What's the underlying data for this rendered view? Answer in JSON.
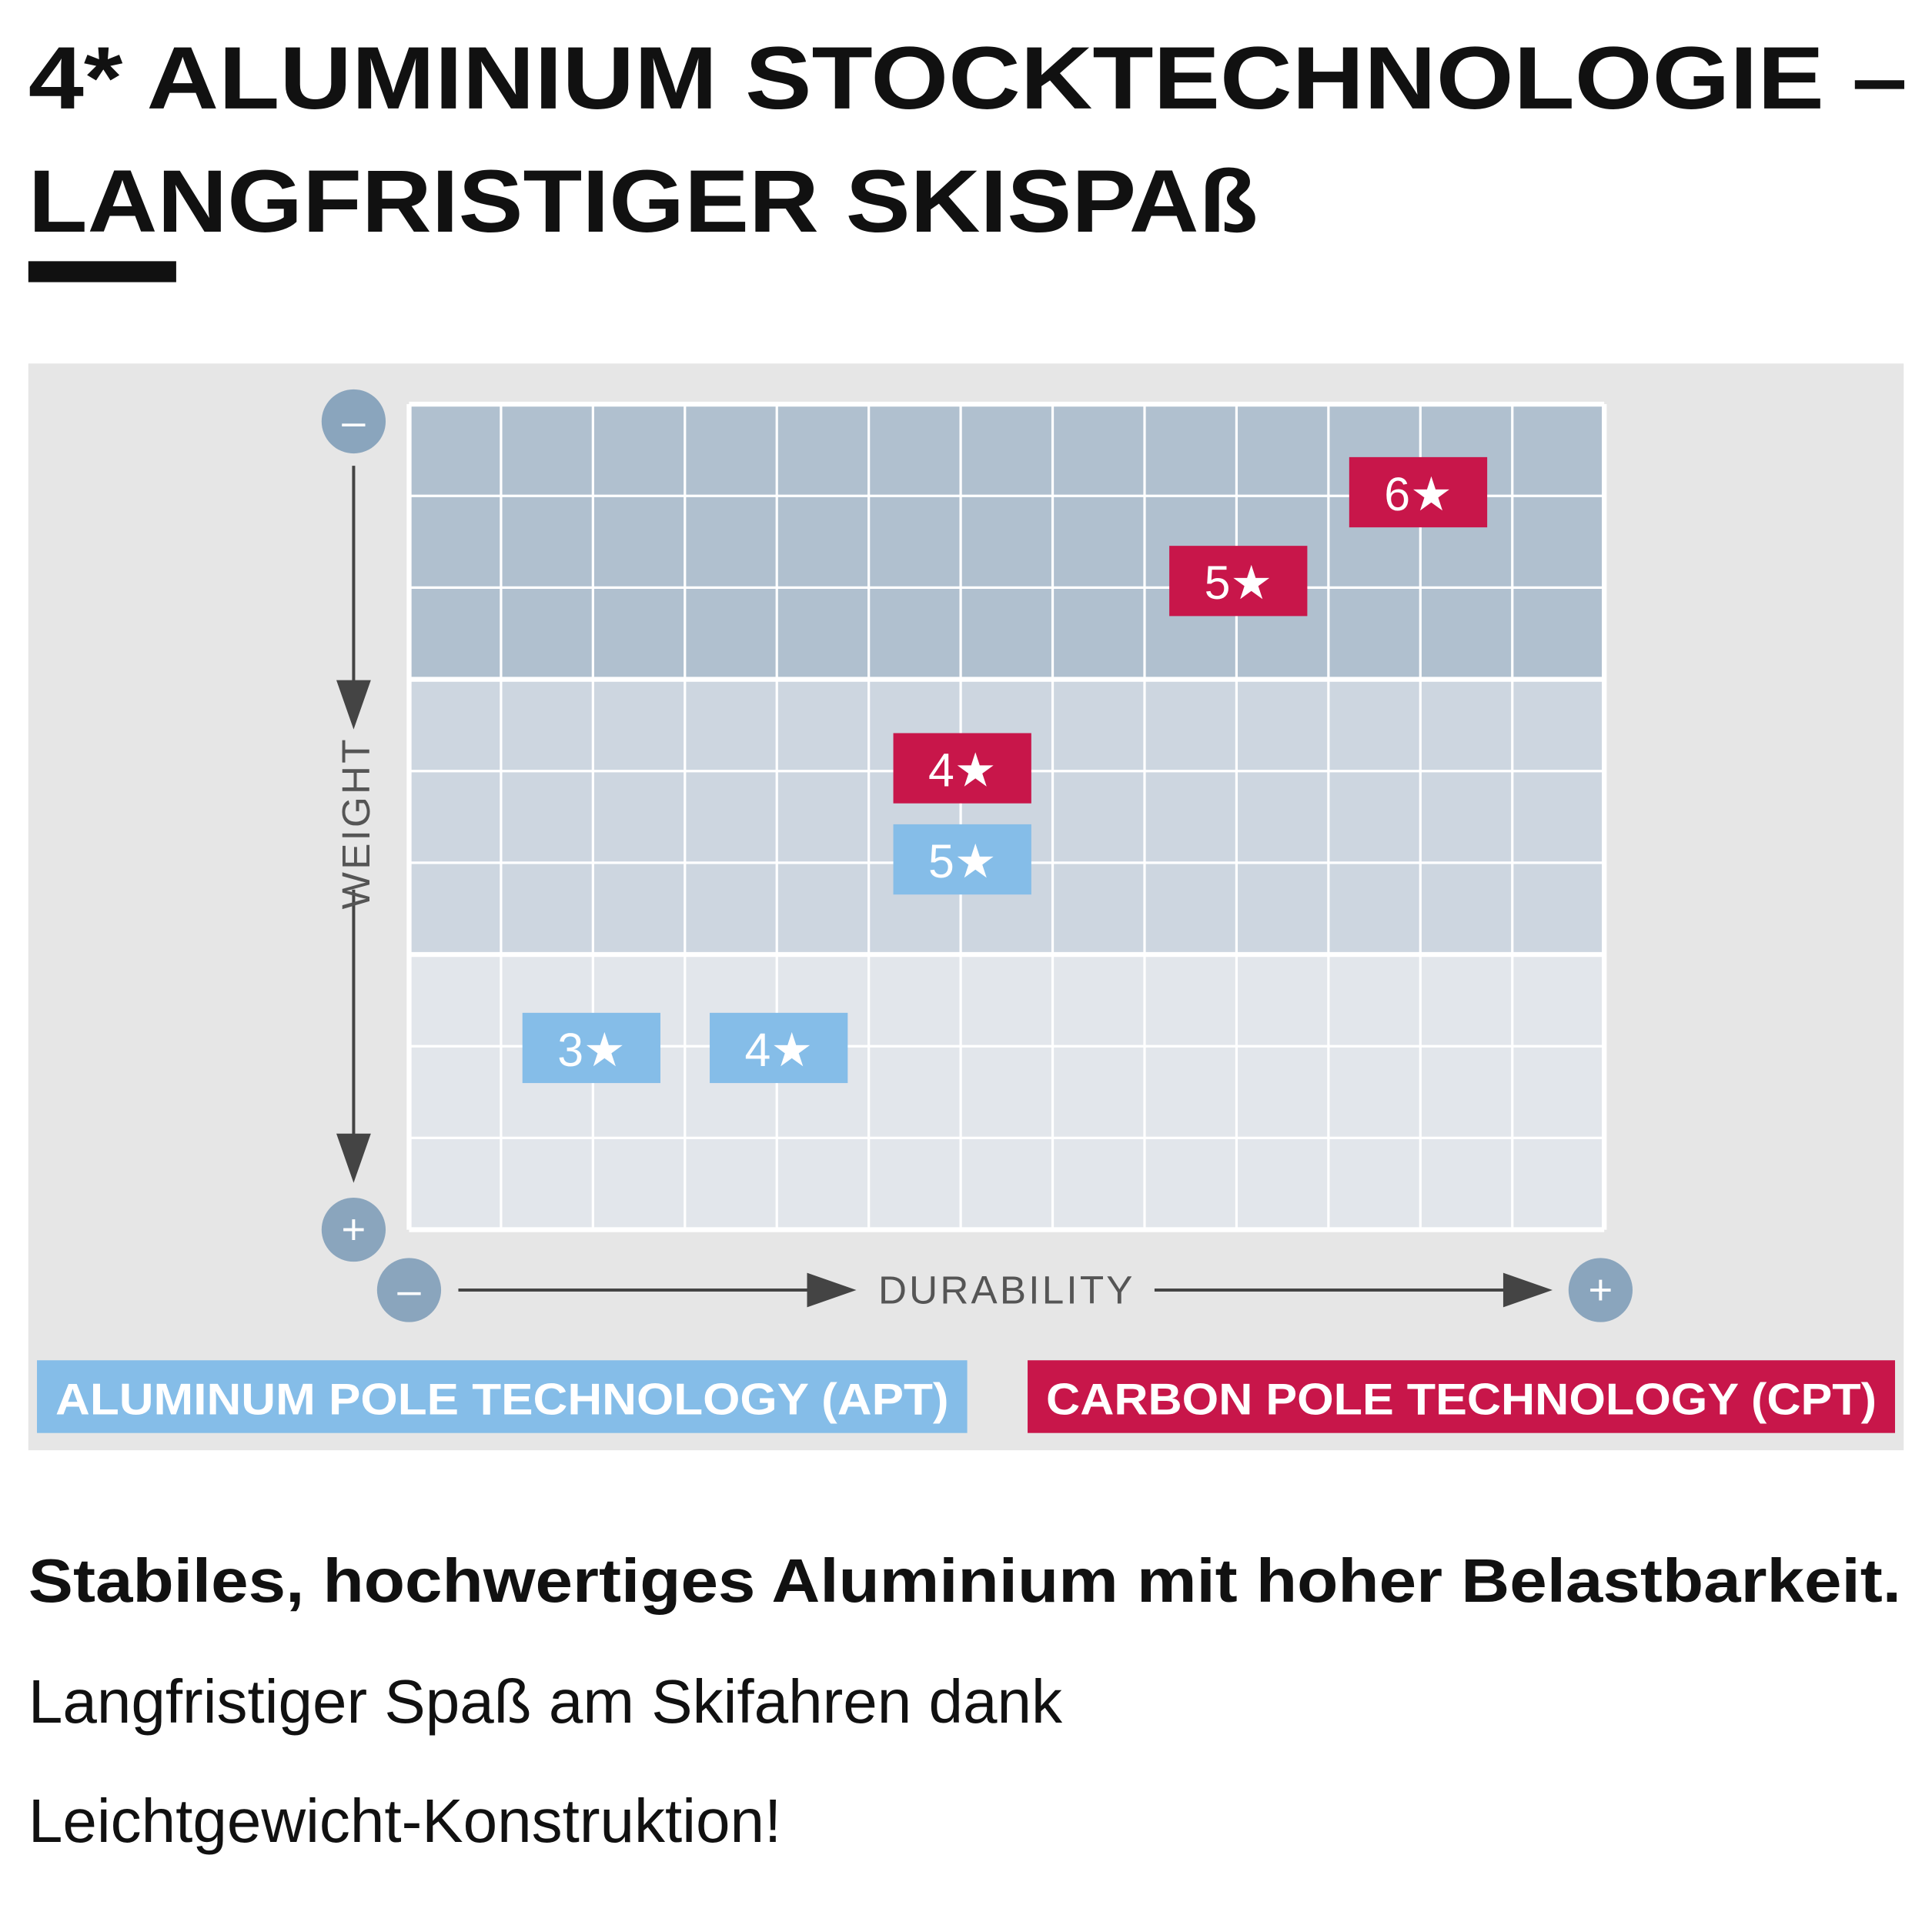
{
  "header": {
    "title_lines": [
      "4* ALUMINIUM STOCKTECHNOLOGIE –",
      "LANGFRISTIGER SKISPAß"
    ]
  },
  "diagram": {
    "y_axis": {
      "label": "WEIGHT",
      "start": "–",
      "end": "+"
    },
    "x_axis": {
      "label": "DURABILITY",
      "start": "–",
      "end": "+"
    },
    "groups": [
      {
        "name": "ALUMINUM POLE TECHNOLOGY (APT)",
        "badges": [
          "3★",
          "4★",
          "5★"
        ]
      },
      {
        "name": "CARBON POLE TECHNOLOGY (CPT)",
        "badges": [
          "4★",
          "5★",
          "6★"
        ]
      }
    ]
  },
  "body": {
    "lead": "Stabiles, hochwertiges Aluminium mit hoher Belastbarkeit.",
    "lines": [
      "Langfristiger Spaß am Skifahren dank",
      "Leichtgewicht-Konstruktion!"
    ]
  }
}
